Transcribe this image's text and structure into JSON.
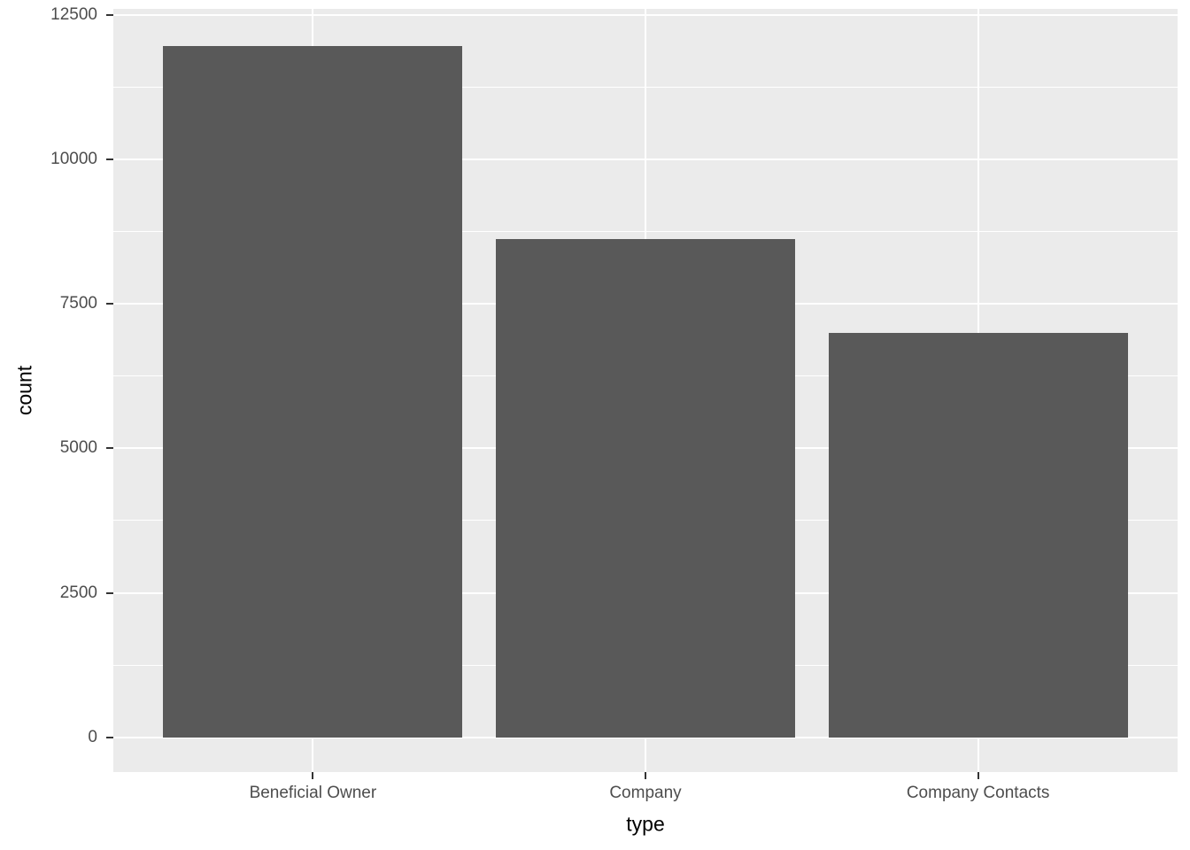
{
  "chart_data": {
    "type": "bar",
    "title": "",
    "categories": [
      "Beneficial Owner",
      "Company",
      "Company Contacts"
    ],
    "values": [
      11950,
      8620,
      7000
    ],
    "xlabel": "type",
    "ylabel": "count",
    "y_major_ticks": [
      0,
      2500,
      5000,
      7500,
      10000,
      12500
    ],
    "y_minor_ticks": [
      1250,
      3750,
      6250,
      8750,
      11250
    ],
    "ylim": [
      -600,
      12600
    ],
    "grid": true,
    "legend": "none",
    "bar_width_fraction": 0.28125,
    "colors": {
      "bar_fill": "#595959",
      "panel_background": "#EBEBEB",
      "gridline": "#FFFFFF",
      "tick_label": "#4D4D4D",
      "axis_title": "#000000",
      "tick_mark": "#333333",
      "figure_background": "#FFFFFF"
    }
  }
}
